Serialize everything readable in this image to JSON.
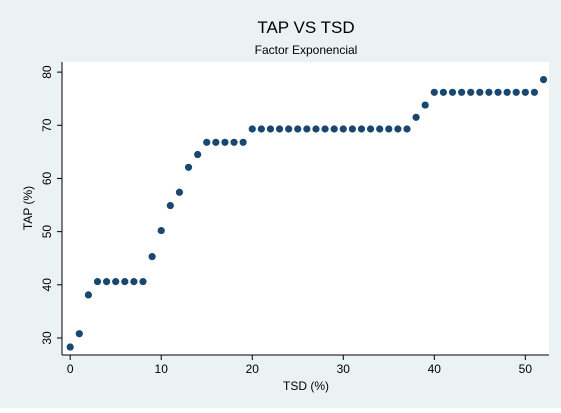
{
  "chart_data": {
    "type": "scatter",
    "title": "TAP VS TSD",
    "subtitle": "Factor Exponencial",
    "x_label": "TSD (%)",
    "y_label": "TAP (%)",
    "x": [
      0,
      1,
      2,
      3,
      4,
      5,
      6,
      7,
      8,
      9,
      10,
      11,
      12,
      13,
      14,
      15,
      16,
      17,
      18,
      19,
      20,
      21,
      22,
      23,
      24,
      25,
      26,
      27,
      28,
      29,
      30,
      31,
      32,
      33,
      34,
      35,
      36,
      37,
      38,
      39,
      40,
      41,
      42,
      43,
      44,
      45,
      46,
      47,
      48,
      49,
      50,
      51,
      52
    ],
    "values": [
      28.3,
      30.8,
      38.1,
      40.6,
      40.6,
      40.6,
      40.6,
      40.6,
      40.6,
      45.3,
      50.2,
      54.9,
      57.4,
      62.1,
      64.5,
      66.8,
      66.8,
      66.8,
      66.8,
      66.8,
      69.3,
      69.3,
      69.3,
      69.3,
      69.3,
      69.3,
      69.3,
      69.3,
      69.3,
      69.3,
      69.3,
      69.3,
      69.3,
      69.3,
      69.3,
      69.3,
      69.3,
      69.3,
      71.5,
      73.8,
      76.2,
      76.2,
      76.2,
      76.2,
      76.2,
      76.2,
      76.2,
      76.2,
      76.2,
      76.2,
      76.2,
      76.2,
      78.6
    ],
    "color": "#1a476f",
    "xlim": [
      -0.9,
      52.6
    ],
    "xticks": [
      0,
      10,
      20,
      30,
      40,
      50
    ],
    "ylim": [
      26.8,
      81.9
    ],
    "yticks": [
      30,
      40,
      50,
      60,
      70,
      80
    ],
    "grid": false
  }
}
